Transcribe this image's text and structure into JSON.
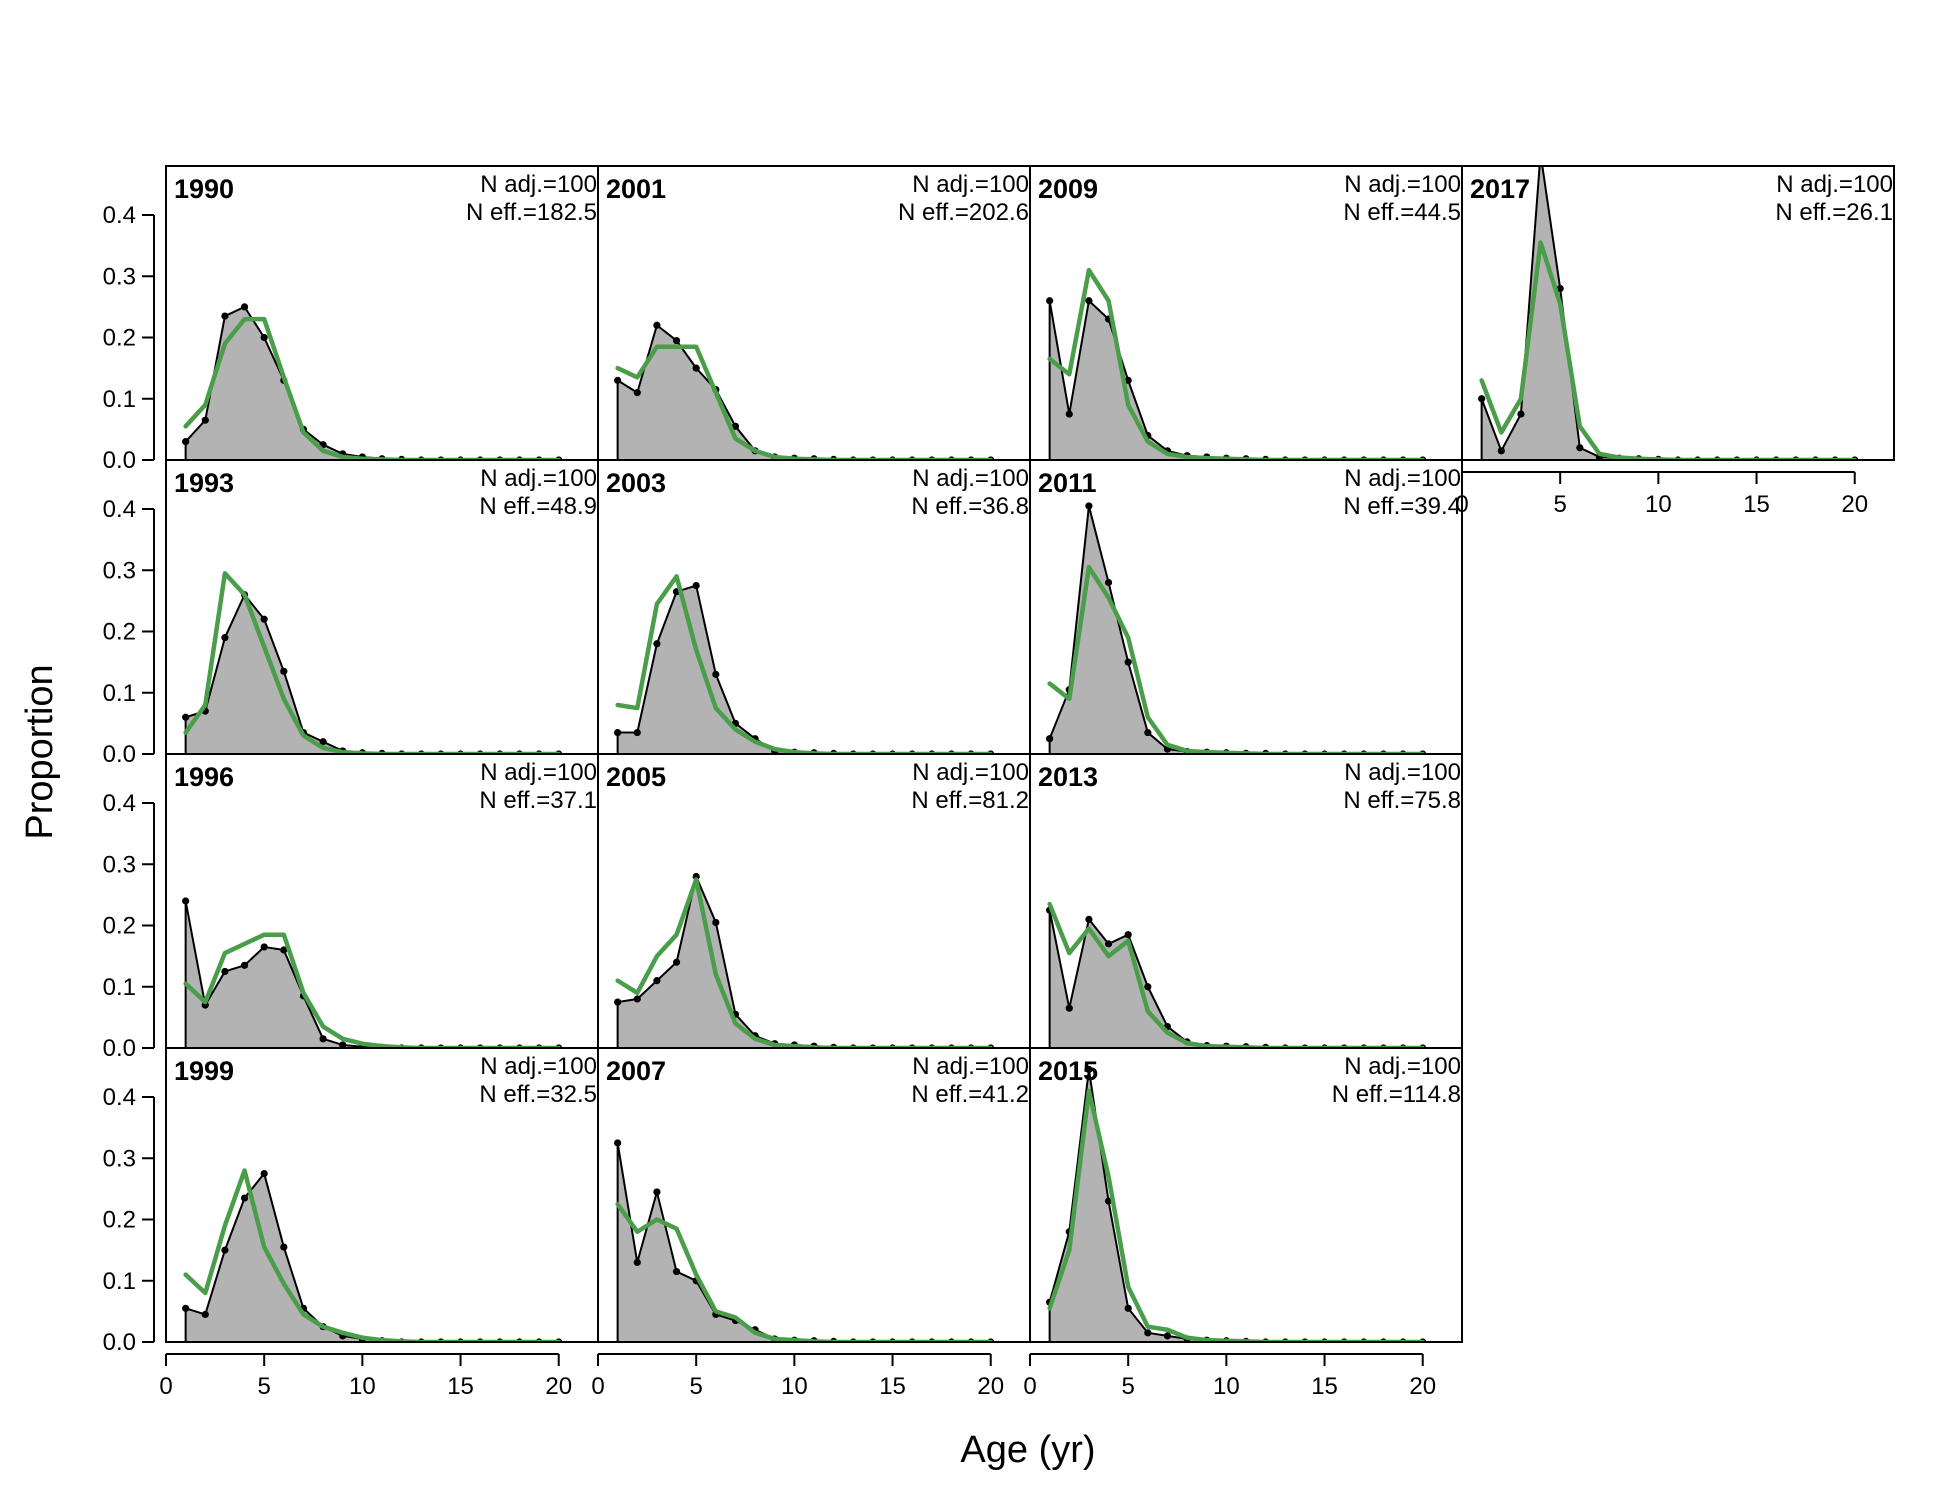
{
  "chart_data": {
    "type": "area",
    "description_labels": {
      "xlabel": "Age (yr)",
      "ylabel": "Proportion"
    },
    "xlim": [
      0,
      22
    ],
    "ylim": [
      0,
      0.48
    ],
    "x_ticks": [
      0,
      5,
      10,
      15,
      20
    ],
    "x_tick_labels": [
      "0",
      "5",
      "10",
      "15",
      "20"
    ],
    "y_ticks": [
      0.0,
      0.1,
      0.2,
      0.3,
      0.4
    ],
    "y_tick_labels": [
      "0.0",
      "0.1",
      "0.2",
      "0.3",
      "0.4"
    ],
    "ages": [
      1,
      2,
      3,
      4,
      5,
      6,
      7,
      8,
      9,
      10,
      11,
      12,
      13,
      14,
      15,
      16,
      17,
      18,
      19,
      20
    ],
    "colors": {
      "observed_fill": "#b3b3b3",
      "observed_line": "#000000",
      "expected_line": "#4a9e4a",
      "zero_line": "#bebebe"
    },
    "panels": [
      {
        "year": "1990",
        "n_adj": "N adj.=100",
        "n_eff": "N eff.=182.5",
        "col": 0,
        "row": 0,
        "observed": [
          0.03,
          0.065,
          0.235,
          0.25,
          0.2,
          0.13,
          0.05,
          0.025,
          0.01,
          0.005,
          0.002,
          0.001,
          0,
          0,
          0,
          0,
          0,
          0,
          0,
          0
        ],
        "expected": [
          0.055,
          0.09,
          0.19,
          0.23,
          0.23,
          0.135,
          0.045,
          0.015,
          0.005,
          0.002,
          0.001,
          0,
          0,
          0,
          0,
          0,
          0,
          0,
          0,
          0
        ]
      },
      {
        "year": "1993",
        "n_adj": "N adj.=100",
        "n_eff": "N eff.=48.9",
        "col": 0,
        "row": 1,
        "observed": [
          0.06,
          0.07,
          0.19,
          0.26,
          0.22,
          0.135,
          0.035,
          0.02,
          0.005,
          0.002,
          0.001,
          0,
          0,
          0,
          0,
          0,
          0,
          0,
          0,
          0
        ],
        "expected": [
          0.035,
          0.08,
          0.295,
          0.26,
          0.175,
          0.09,
          0.03,
          0.01,
          0.003,
          0.001,
          0,
          0,
          0,
          0,
          0,
          0,
          0,
          0,
          0,
          0
        ]
      },
      {
        "year": "1996",
        "n_adj": "N adj.=100",
        "n_eff": "N eff.=37.1",
        "col": 0,
        "row": 2,
        "observed": [
          0.24,
          0.07,
          0.125,
          0.135,
          0.165,
          0.16,
          0.085,
          0.015,
          0.005,
          0.002,
          0.001,
          0,
          0,
          0,
          0,
          0,
          0,
          0,
          0,
          0
        ],
        "expected": [
          0.105,
          0.075,
          0.155,
          0.17,
          0.185,
          0.185,
          0.09,
          0.035,
          0.015,
          0.007,
          0.003,
          0.001,
          0,
          0,
          0,
          0,
          0,
          0,
          0,
          0
        ]
      },
      {
        "year": "1999",
        "n_adj": "N adj.=100",
        "n_eff": "N eff.=32.5",
        "col": 0,
        "row": 3,
        "observed": [
          0.055,
          0.045,
          0.15,
          0.235,
          0.275,
          0.155,
          0.055,
          0.025,
          0.01,
          0.005,
          0.002,
          0,
          0,
          0,
          0,
          0,
          0,
          0,
          0,
          0
        ],
        "expected": [
          0.11,
          0.08,
          0.19,
          0.28,
          0.155,
          0.095,
          0.045,
          0.025,
          0.015,
          0.007,
          0.003,
          0.001,
          0,
          0,
          0,
          0,
          0,
          0,
          0,
          0
        ]
      },
      {
        "year": "2001",
        "n_adj": "N adj.=100",
        "n_eff": "N eff.=202.6",
        "col": 1,
        "row": 0,
        "observed": [
          0.13,
          0.11,
          0.22,
          0.195,
          0.15,
          0.115,
          0.055,
          0.015,
          0.005,
          0.003,
          0.002,
          0.001,
          0,
          0,
          0,
          0,
          0,
          0,
          0,
          0
        ],
        "expected": [
          0.15,
          0.135,
          0.185,
          0.185,
          0.185,
          0.11,
          0.035,
          0.015,
          0.005,
          0.002,
          0.001,
          0,
          0,
          0,
          0,
          0,
          0,
          0,
          0,
          0
        ]
      },
      {
        "year": "2003",
        "n_adj": "N adj.=100",
        "n_eff": "N eff.=36.8",
        "col": 1,
        "row": 1,
        "observed": [
          0.035,
          0.035,
          0.18,
          0.265,
          0.275,
          0.13,
          0.05,
          0.025,
          0.005,
          0.003,
          0.002,
          0.001,
          0,
          0,
          0,
          0,
          0,
          0,
          0,
          0
        ],
        "expected": [
          0.08,
          0.075,
          0.245,
          0.29,
          0.17,
          0.075,
          0.04,
          0.02,
          0.008,
          0.003,
          0.001,
          0,
          0,
          0,
          0,
          0,
          0,
          0,
          0,
          0
        ]
      },
      {
        "year": "2005",
        "n_adj": "N adj.=100",
        "n_eff": "N eff.=81.2",
        "col": 1,
        "row": 2,
        "observed": [
          0.075,
          0.08,
          0.11,
          0.14,
          0.28,
          0.205,
          0.055,
          0.02,
          0.007,
          0.005,
          0.003,
          0.001,
          0,
          0,
          0,
          0,
          0,
          0,
          0,
          0
        ],
        "expected": [
          0.11,
          0.09,
          0.15,
          0.185,
          0.275,
          0.12,
          0.04,
          0.015,
          0.005,
          0.003,
          0.001,
          0,
          0,
          0,
          0,
          0,
          0,
          0,
          0,
          0
        ]
      },
      {
        "year": "2007",
        "n_adj": "N adj.=100",
        "n_eff": "N eff.=41.2",
        "col": 1,
        "row": 3,
        "observed": [
          0.325,
          0.13,
          0.245,
          0.115,
          0.1,
          0.045,
          0.035,
          0.02,
          0.005,
          0.003,
          0.002,
          0.001,
          0,
          0,
          0,
          0,
          0,
          0,
          0,
          0
        ],
        "expected": [
          0.225,
          0.18,
          0.2,
          0.185,
          0.11,
          0.05,
          0.04,
          0.015,
          0.005,
          0.003,
          0.001,
          0,
          0,
          0,
          0,
          0,
          0,
          0,
          0,
          0
        ]
      },
      {
        "year": "2009",
        "n_adj": "N adj.=100",
        "n_eff": "N eff.=44.5",
        "col": 2,
        "row": 0,
        "observed": [
          0.26,
          0.075,
          0.26,
          0.23,
          0.13,
          0.04,
          0.015,
          0.007,
          0.005,
          0.003,
          0.002,
          0.001,
          0,
          0,
          0,
          0,
          0,
          0,
          0,
          0
        ],
        "expected": [
          0.165,
          0.14,
          0.31,
          0.26,
          0.09,
          0.03,
          0.01,
          0.005,
          0.003,
          0.002,
          0.001,
          0,
          0,
          0,
          0,
          0,
          0,
          0,
          0,
          0
        ]
      },
      {
        "year": "2011",
        "n_adj": "N adj.=100",
        "n_eff": "N eff.=39.4",
        "col": 2,
        "row": 1,
        "observed": [
          0.025,
          0.105,
          0.405,
          0.28,
          0.15,
          0.035,
          0.008,
          0.004,
          0.003,
          0.002,
          0.001,
          0.001,
          0,
          0,
          0,
          0,
          0,
          0,
          0,
          0
        ],
        "expected": [
          0.115,
          0.09,
          0.305,
          0.255,
          0.19,
          0.06,
          0.015,
          0.005,
          0.003,
          0.002,
          0.001,
          0,
          0,
          0,
          0,
          0,
          0,
          0,
          0,
          0
        ]
      },
      {
        "year": "2013",
        "n_adj": "N adj.=100",
        "n_eff": "N eff.=75.8",
        "col": 2,
        "row": 2,
        "observed": [
          0.225,
          0.065,
          0.21,
          0.17,
          0.185,
          0.1,
          0.035,
          0.01,
          0.004,
          0.003,
          0.002,
          0.001,
          0,
          0,
          0,
          0,
          0,
          0,
          0,
          0
        ],
        "expected": [
          0.235,
          0.155,
          0.195,
          0.15,
          0.175,
          0.06,
          0.025,
          0.008,
          0.003,
          0.002,
          0.001,
          0,
          0,
          0,
          0,
          0,
          0,
          0,
          0,
          0
        ]
      },
      {
        "year": "2015",
        "n_adj": "N adj.=100",
        "n_eff": "N eff.=114.8",
        "col": 2,
        "row": 3,
        "observed": [
          0.065,
          0.18,
          0.445,
          0.23,
          0.055,
          0.015,
          0.01,
          0.005,
          0.003,
          0.002,
          0.001,
          0,
          0,
          0,
          0,
          0,
          0,
          0,
          0,
          0
        ],
        "expected": [
          0.055,
          0.15,
          0.41,
          0.27,
          0.09,
          0.025,
          0.02,
          0.007,
          0.003,
          0.002,
          0.001,
          0,
          0,
          0,
          0,
          0,
          0,
          0,
          0,
          0
        ]
      },
      {
        "year": "2017",
        "n_adj": "N adj.=100",
        "n_eff": "N eff.=26.1",
        "col": 3,
        "row": 0,
        "observed": [
          0.1,
          0.015,
          0.075,
          0.5,
          0.28,
          0.02,
          0.005,
          0.003,
          0.002,
          0.001,
          0,
          0,
          0,
          0,
          0,
          0,
          0,
          0,
          0,
          0
        ],
        "expected": [
          0.13,
          0.045,
          0.1,
          0.355,
          0.255,
          0.055,
          0.01,
          0.004,
          0.002,
          0.001,
          0,
          0,
          0,
          0,
          0,
          0,
          0,
          0,
          0,
          0
        ]
      }
    ]
  }
}
